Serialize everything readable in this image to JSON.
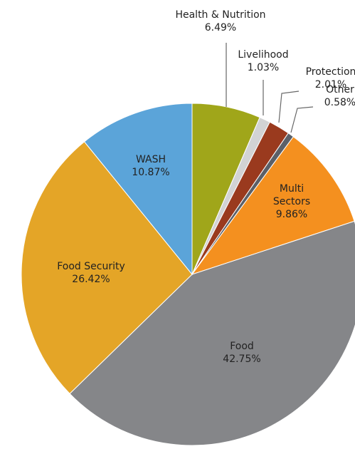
{
  "chart_data": {
    "type": "pie",
    "categories": [
      "Health & Nutrition",
      "Livelihood",
      "Protection",
      "Other",
      "Multi Sectors",
      "Food",
      "Food Security",
      "WASH"
    ],
    "values": [
      6.49,
      1.03,
      2.01,
      0.58,
      9.86,
      42.75,
      26.42,
      10.87
    ],
    "value_labels": [
      "6.49%",
      "1.03%",
      "2.01%",
      "0.58%",
      "9.86%",
      "42.75%",
      "26.42%",
      "10.87%"
    ],
    "colors": [
      "#a0a61a",
      "#d2d3d4",
      "#9a3a1e",
      "#5b6068",
      "#f4901f",
      "#858689",
      "#e4a527",
      "#5ba4d9"
    ]
  }
}
